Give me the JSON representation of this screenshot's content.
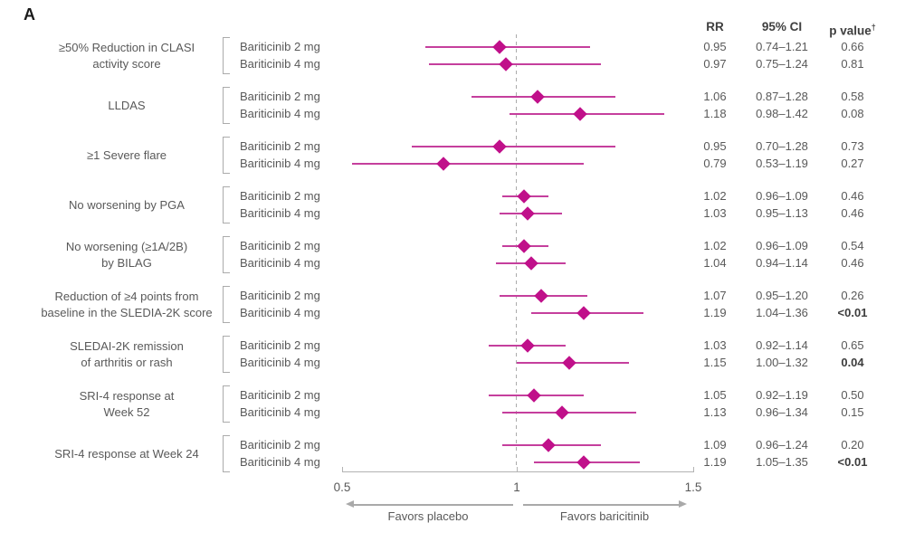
{
  "meta": {
    "panel_label": "A"
  },
  "columns": {
    "rr": "RR",
    "ci": "95% CI",
    "p": "p value",
    "p_dagger": "†"
  },
  "axis": {
    "ticks": [
      "0.5",
      "1",
      "1.5"
    ],
    "left_label": "Favors placebo",
    "right_label": "Favors baricitinib"
  },
  "colors": {
    "marker": "#c0108a",
    "line": "#c53f9d",
    "ref_line": "#ababab",
    "axis": "#b3b3b3",
    "text": "#595959",
    "header_text": "#3f3f3f",
    "bracket": "#ababab"
  },
  "chart_data": {
    "type": "scatter",
    "subtype": "forest-plot",
    "title": "",
    "xlabel": "",
    "ylabel": "",
    "x_axis": {
      "min": 0.5,
      "max": 1.5,
      "reference_value": 1,
      "tick_values": [
        0.5,
        1,
        1.5
      ]
    },
    "legend_position": "none",
    "grid": false,
    "groups": [
      {
        "outcome_lines": [
          "≥50% Reduction in CLASI",
          "activity score"
        ],
        "rows": [
          {
            "treatment": "Bariticinib 2 mg",
            "rr": 0.95,
            "ci_low": 0.74,
            "ci_high": 1.21,
            "rr_label": "0.95",
            "ci_label": "0.74–1.21",
            "p_label": "0.66",
            "p_bold": false
          },
          {
            "treatment": "Bariticinib 4 mg",
            "rr": 0.97,
            "ci_low": 0.75,
            "ci_high": 1.24,
            "rr_label": "0.97",
            "ci_label": "0.75–1.24",
            "p_label": "0.81",
            "p_bold": false
          }
        ]
      },
      {
        "outcome_lines": [
          "LLDAS"
        ],
        "rows": [
          {
            "treatment": "Bariticinib 2 mg",
            "rr": 1.06,
            "ci_low": 0.87,
            "ci_high": 1.28,
            "rr_label": "1.06",
            "ci_label": "0.87–1.28",
            "p_label": "0.58",
            "p_bold": false
          },
          {
            "treatment": "Bariticinib 4 mg",
            "rr": 1.18,
            "ci_low": 0.98,
            "ci_high": 1.42,
            "rr_label": "1.18",
            "ci_label": "0.98–1.42",
            "p_label": "0.08",
            "p_bold": false
          }
        ]
      },
      {
        "outcome_lines": [
          "≥1 Severe flare"
        ],
        "rows": [
          {
            "treatment": "Bariticinib 2 mg",
            "rr": 0.95,
            "ci_low": 0.7,
            "ci_high": 1.28,
            "rr_label": "0.95",
            "ci_label": "0.70–1.28",
            "p_label": "0.73",
            "p_bold": false
          },
          {
            "treatment": "Bariticinib 4 mg",
            "rr": 0.79,
            "ci_low": 0.53,
            "ci_high": 1.19,
            "rr_label": "0.79",
            "ci_label": "0.53–1.19",
            "p_label": "0.27",
            "p_bold": false
          }
        ]
      },
      {
        "outcome_lines": [
          "No worsening by PGA"
        ],
        "rows": [
          {
            "treatment": "Bariticinib 2 mg",
            "rr": 1.02,
            "ci_low": 0.96,
            "ci_high": 1.09,
            "rr_label": "1.02",
            "ci_label": "0.96–1.09",
            "p_label": "0.46",
            "p_bold": false
          },
          {
            "treatment": "Bariticinib 4 mg",
            "rr": 1.03,
            "ci_low": 0.95,
            "ci_high": 1.13,
            "rr_label": "1.03",
            "ci_label": "0.95–1.13",
            "p_label": "0.46",
            "p_bold": false
          }
        ]
      },
      {
        "outcome_lines": [
          "No worsening (≥1A/2B)",
          "by BILAG"
        ],
        "rows": [
          {
            "treatment": "Bariticinib 2 mg",
            "rr": 1.02,
            "ci_low": 0.96,
            "ci_high": 1.09,
            "rr_label": "1.02",
            "ci_label": "0.96–1.09",
            "p_label": "0.54",
            "p_bold": false
          },
          {
            "treatment": "Bariticinib 4 mg",
            "rr": 1.04,
            "ci_low": 0.94,
            "ci_high": 1.14,
            "rr_label": "1.04",
            "ci_label": "0.94–1.14",
            "p_label": "0.46",
            "p_bold": false
          }
        ]
      },
      {
        "outcome_lines": [
          "Reduction of ≥4 points from",
          "baseline in the SLEDIA-2K score"
        ],
        "rows": [
          {
            "treatment": "Bariticinib 2 mg",
            "rr": 1.07,
            "ci_low": 0.95,
            "ci_high": 1.2,
            "rr_label": "1.07",
            "ci_label": "0.95–1.20",
            "p_label": "0.26",
            "p_bold": false
          },
          {
            "treatment": "Bariticinib 4 mg",
            "rr": 1.19,
            "ci_low": 1.04,
            "ci_high": 1.36,
            "rr_label": "1.19",
            "ci_label": "1.04–1.36",
            "p_label": "<0.01",
            "p_bold": true
          }
        ]
      },
      {
        "outcome_lines": [
          "SLEDAI-2K remission",
          "of arthritis or rash"
        ],
        "rows": [
          {
            "treatment": "Bariticinib 2 mg",
            "rr": 1.03,
            "ci_low": 0.92,
            "ci_high": 1.14,
            "rr_label": "1.03",
            "ci_label": "0.92–1.14",
            "p_label": "0.65",
            "p_bold": false
          },
          {
            "treatment": "Bariticinib 4 mg",
            "rr": 1.15,
            "ci_low": 1.0,
            "ci_high": 1.32,
            "rr_label": "1.15",
            "ci_label": "1.00–1.32",
            "p_label": "0.04",
            "p_bold": true
          }
        ]
      },
      {
        "outcome_lines": [
          "SRI-4 response at",
          "Week 52"
        ],
        "rows": [
          {
            "treatment": "Bariticinib 2 mg",
            "rr": 1.05,
            "ci_low": 0.92,
            "ci_high": 1.19,
            "rr_label": "1.05",
            "ci_label": "0.92–1.19",
            "p_label": "0.50",
            "p_bold": false
          },
          {
            "treatment": "Bariticinib 4 mg",
            "rr": 1.13,
            "ci_low": 0.96,
            "ci_high": 1.34,
            "rr_label": "1.13",
            "ci_label": "0.96–1.34",
            "p_label": "0.15",
            "p_bold": false
          }
        ]
      },
      {
        "outcome_lines": [
          "SRI-4 response at Week 24"
        ],
        "rows": [
          {
            "treatment": "Bariticinib 2 mg",
            "rr": 1.09,
            "ci_low": 0.96,
            "ci_high": 1.24,
            "rr_label": "1.09",
            "ci_label": "0.96–1.24",
            "p_label": "0.20",
            "p_bold": false
          },
          {
            "treatment": "Bariticinib 4 mg",
            "rr": 1.19,
            "ci_low": 1.05,
            "ci_high": 1.35,
            "rr_label": "1.19",
            "ci_label": "1.05–1.35",
            "p_label": "<0.01",
            "p_bold": true
          }
        ]
      }
    ]
  }
}
